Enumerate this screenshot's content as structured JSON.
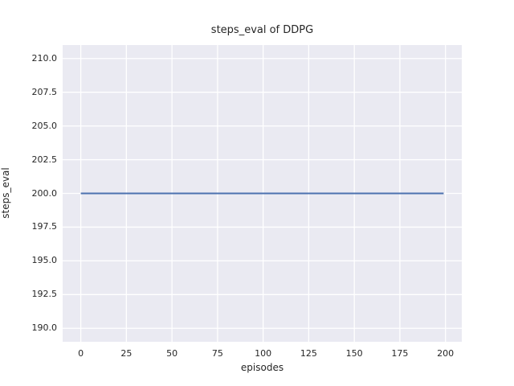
{
  "chart_data": {
    "type": "line",
    "title": "steps_eval of DDPG",
    "xlabel": "episodes",
    "ylabel": "steps_eval",
    "xlim": [
      -9.95,
      208.95
    ],
    "ylim": [
      189,
      211
    ],
    "xtick_values": [
      0,
      25,
      50,
      75,
      100,
      125,
      150,
      175,
      200
    ],
    "xtick_labels": [
      "0",
      "25",
      "50",
      "75",
      "100",
      "125",
      "150",
      "175",
      "200"
    ],
    "ytick_values": [
      190.0,
      192.5,
      195.0,
      197.5,
      200.0,
      202.5,
      205.0,
      207.5,
      210.0
    ],
    "ytick_labels": [
      "190.0",
      "192.5",
      "195.0",
      "197.5",
      "200.0",
      "202.5",
      "205.0",
      "207.5",
      "210.0"
    ],
    "grid": true,
    "legend": false,
    "series": [
      {
        "name": "steps_eval",
        "x": [
          0,
          199
        ],
        "y": [
          200,
          200
        ],
        "color": "#4c72b0",
        "linewidth": 2
      }
    ],
    "styles": {
      "figure_background": "#ffffff",
      "plot_background": "#eaeaf2",
      "grid_color": "#ffffff",
      "text_color": "#262626"
    }
  }
}
